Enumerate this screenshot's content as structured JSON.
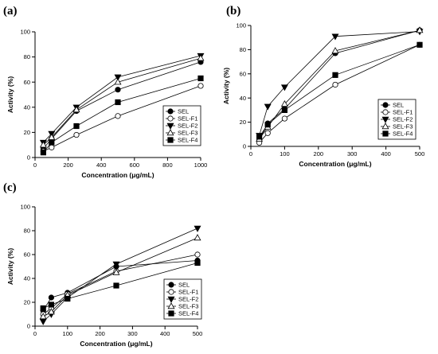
{
  "panels": [
    {
      "label": "(a)"
    },
    {
      "label": "(b)"
    },
    {
      "label": "(c)"
    }
  ],
  "chart_data": [
    {
      "type": "line",
      "xlabel": "Concentration (μg/mL)",
      "ylabel": "Activity (%)",
      "xlim": [
        0,
        1000
      ],
      "ylim": [
        0,
        100
      ],
      "xticks": [
        0,
        200,
        400,
        600,
        800,
        1000
      ],
      "yticks": [
        0,
        20,
        40,
        60,
        80,
        100
      ],
      "legend_position": "bottom-right",
      "x": [
        50,
        100,
        250,
        500,
        1000
      ],
      "series": [
        {
          "name": "SEL",
          "marker": "circle-filled",
          "values": [
            7,
            15,
            37,
            54,
            76
          ]
        },
        {
          "name": "SEL-F1",
          "marker": "circle-open",
          "values": [
            5,
            8,
            18,
            33,
            57
          ]
        },
        {
          "name": "SEL-F2",
          "marker": "triangle-down-filled",
          "values": [
            12,
            19,
            40,
            64,
            81
          ]
        },
        {
          "name": "SEL-F3",
          "marker": "triangle-up-open",
          "values": [
            10,
            16,
            38,
            60,
            79
          ]
        },
        {
          "name": "SEL-F4",
          "marker": "square-filled",
          "values": [
            4,
            12,
            25,
            44,
            63
          ]
        }
      ]
    },
    {
      "type": "line",
      "xlabel": "Concentration (μg/mL)",
      "ylabel": "Activity (%)",
      "xlim": [
        0,
        500
      ],
      "ylim": [
        0,
        100
      ],
      "xticks": [
        0,
        100,
        200,
        300,
        400,
        500
      ],
      "yticks": [
        0,
        20,
        40,
        60,
        80,
        100
      ],
      "legend_position": "bottom-right",
      "x": [
        25,
        50,
        100,
        250,
        500
      ],
      "series": [
        {
          "name": "SEL",
          "marker": "circle-filled",
          "values": [
            5,
            19,
            31,
            77,
            96
          ]
        },
        {
          "name": "SEL-F1",
          "marker": "circle-open",
          "values": [
            3,
            11,
            23,
            51,
            84
          ]
        },
        {
          "name": "SEL-F2",
          "marker": "triangle-down-filled",
          "values": [
            9,
            33,
            49,
            91,
            95
          ]
        },
        {
          "name": "SEL-F3",
          "marker": "triangle-up-open",
          "values": [
            6,
            16,
            35,
            79,
            96
          ]
        },
        {
          "name": "SEL-F4",
          "marker": "square-filled",
          "values": [
            8,
            18,
            30,
            59,
            84
          ]
        }
      ]
    },
    {
      "type": "line",
      "xlabel": "Concentration (μg/mL)",
      "ylabel": "Activity (%)",
      "xlim": [
        0,
        500
      ],
      "ylim": [
        0,
        100
      ],
      "xticks": [
        0,
        100,
        200,
        300,
        400,
        500
      ],
      "yticks": [
        0,
        20,
        40,
        60,
        80,
        100
      ],
      "legend_position": "bottom-right",
      "x": [
        25,
        50,
        100,
        250,
        500
      ],
      "series": [
        {
          "name": "SEL",
          "marker": "circle-filled",
          "values": [
            13,
            24,
            28,
            50,
            55
          ]
        },
        {
          "name": "SEL-F1",
          "marker": "circle-open",
          "values": [
            10,
            15,
            27,
            46,
            60
          ]
        },
        {
          "name": "SEL-F2",
          "marker": "triangle-down-filled",
          "values": [
            4,
            10,
            24,
            52,
            82
          ]
        },
        {
          "name": "SEL-F3",
          "marker": "triangle-up-open",
          "values": [
            8,
            12,
            26,
            45,
            74
          ]
        },
        {
          "name": "SEL-F4",
          "marker": "square-filled",
          "values": [
            15,
            18,
            23,
            34,
            53
          ]
        }
      ]
    }
  ]
}
